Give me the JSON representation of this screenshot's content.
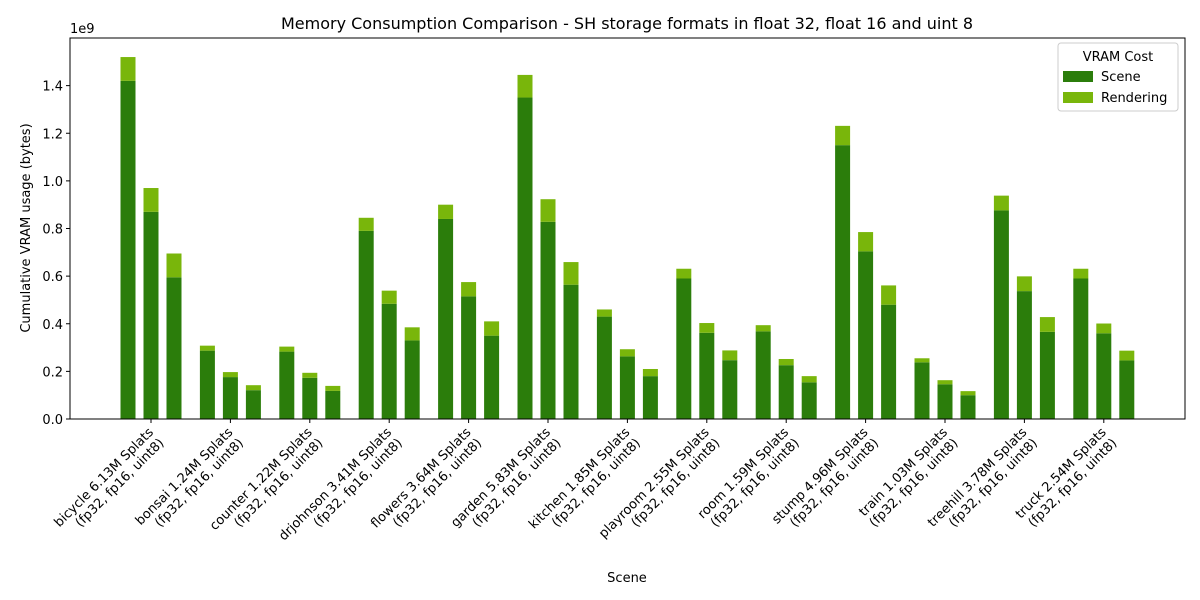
{
  "chart_data": {
    "type": "bar",
    "stacked": true,
    "title": "Memory Consumption Comparison - SH storage formats in float 32, float 16 and uint 8",
    "xlabel": "Scene",
    "ylabel": "Cumulative VRAM usage (bytes)",
    "y_scale_label": "1e9",
    "ylim": [
      0,
      1.6
    ],
    "y_unit_multiplier": 1000000000,
    "yticks": [
      "0.0",
      "0.2",
      "0.4",
      "0.6",
      "0.8",
      "1.0",
      "1.2",
      "1.4"
    ],
    "grid": false,
    "legend": {
      "title": "VRAM Cost",
      "placement": "top-right",
      "entries": [
        "Scene",
        "Rendering"
      ]
    },
    "colors": {
      "Scene": "#2b7d0b",
      "Rendering": "#79b60b"
    },
    "groups": [
      {
        "label_line1": "bicycle 6.13M Splats",
        "label_line2": "(fp32, fp16, uint8)",
        "scene": [
          1.42,
          0.87,
          0.595
        ],
        "rendering": [
          0.1,
          0.1,
          0.1
        ]
      },
      {
        "label_line1": "bonsai 1.24M Splats",
        "label_line2": "(fp32, fp16, uint8)",
        "scene": [
          0.287,
          0.176,
          0.121
        ],
        "rendering": [
          0.021,
          0.021,
          0.021
        ]
      },
      {
        "label_line1": "counter 1.22M Splats",
        "label_line2": "(fp32, fp16, uint8)",
        "scene": [
          0.283,
          0.173,
          0.118
        ],
        "rendering": [
          0.021,
          0.021,
          0.021
        ]
      },
      {
        "label_line1": "drjohnson 3.41M Splats",
        "label_line2": "(fp32, fp16, uint8)",
        "scene": [
          0.79,
          0.484,
          0.33
        ],
        "rendering": [
          0.055,
          0.055,
          0.055
        ]
      },
      {
        "label_line1": "flowers 3.64M Splats",
        "label_line2": "(fp32, fp16, uint8)",
        "scene": [
          0.84,
          0.515,
          0.35
        ],
        "rendering": [
          0.06,
          0.06,
          0.06
        ]
      },
      {
        "label_line1": "garden 5.83M Splats",
        "label_line2": "(fp32, fp16, uint8)",
        "scene": [
          1.35,
          0.828,
          0.564
        ],
        "rendering": [
          0.095,
          0.095,
          0.095
        ]
      },
      {
        "label_line1": "kitchen 1.85M Splats",
        "label_line2": "(fp32, fp16, uint8)",
        "scene": [
          0.43,
          0.263,
          0.18
        ],
        "rendering": [
          0.03,
          0.03,
          0.03
        ]
      },
      {
        "label_line1": "playroom 2.55M Splats",
        "label_line2": "(fp32, fp16, uint8)",
        "scene": [
          0.59,
          0.362,
          0.247
        ],
        "rendering": [
          0.041,
          0.041,
          0.041
        ]
      },
      {
        "label_line1": "room 1.59M Splats",
        "label_line2": "(fp32, fp16, uint8)",
        "scene": [
          0.368,
          0.226,
          0.154
        ],
        "rendering": [
          0.026,
          0.026,
          0.026
        ]
      },
      {
        "label_line1": "stump 4.96M Splats",
        "label_line2": "(fp32, fp16, uint8)",
        "scene": [
          1.15,
          0.704,
          0.48
        ],
        "rendering": [
          0.081,
          0.081,
          0.081
        ]
      },
      {
        "label_line1": "train 1.03M Splats",
        "label_line2": "(fp32, fp16, uint8)",
        "scene": [
          0.238,
          0.146,
          0.1
        ],
        "rendering": [
          0.017,
          0.017,
          0.017
        ]
      },
      {
        "label_line1": "treehill 3.78M Splats",
        "label_line2": "(fp32, fp16, uint8)",
        "scene": [
          0.876,
          0.537,
          0.366
        ],
        "rendering": [
          0.062,
          0.062,
          0.062
        ]
      },
      {
        "label_line1": "truck 2.54M Splats",
        "label_line2": "(fp32, fp16, uint8)",
        "scene": [
          0.59,
          0.36,
          0.246
        ],
        "rendering": [
          0.041,
          0.041,
          0.041
        ]
      }
    ]
  }
}
